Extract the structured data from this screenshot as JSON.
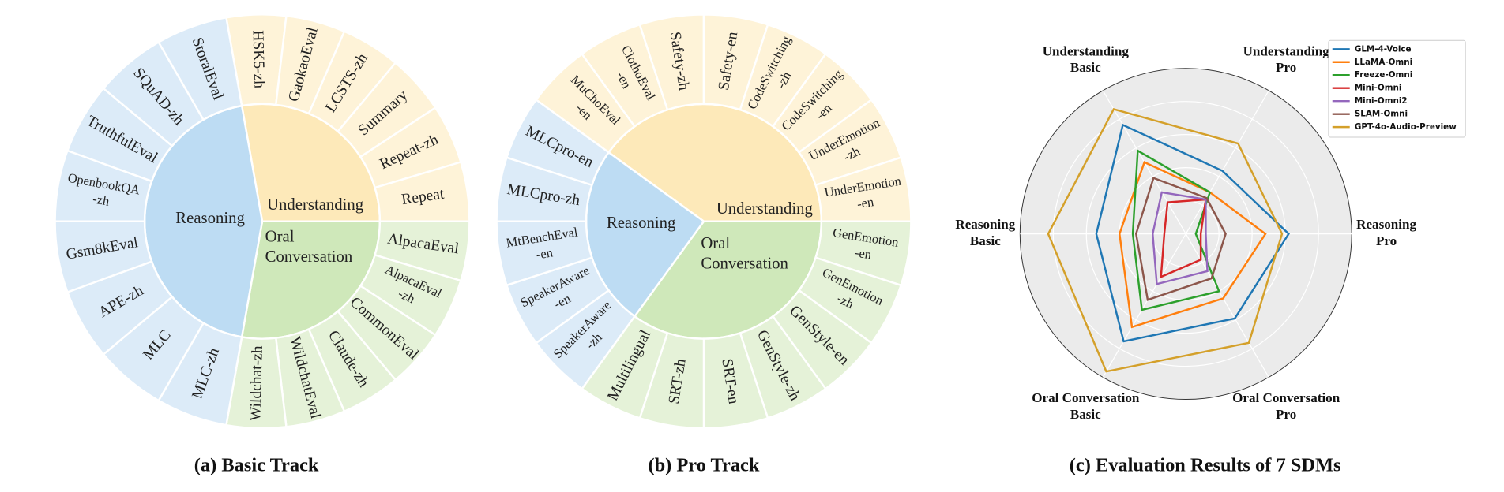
{
  "basic_track": {
    "caption": "(a) Basic Track",
    "groups": [
      {
        "label": [
          "Understanding"
        ],
        "tasks": [
          [
            "HSK5-zh"
          ],
          [
            "GaokaoEval"
          ],
          [
            "LCSTS-zh"
          ],
          [
            "Summary"
          ],
          [
            "Repeat-zh"
          ],
          [
            "Repeat"
          ]
        ]
      },
      {
        "label": [
          "Oral",
          "Conversation"
        ],
        "tasks": [
          [
            "AlpacaEval"
          ],
          [
            "AlpacaEval",
            "-zh"
          ],
          [
            "CommonEval"
          ],
          [
            "Claude-zh"
          ],
          [
            "WildchatEval"
          ],
          [
            "Wildchat-zh"
          ]
        ]
      },
      {
        "label": [
          "Reasoning"
        ],
        "tasks": [
          [
            "MLC-zh"
          ],
          [
            "MLC"
          ],
          [
            "APE-zh"
          ],
          [
            "Gsm8kEval"
          ],
          [
            "OpenbookQA",
            "-zh"
          ],
          [
            "TruthfulEval"
          ],
          [
            "SQuAD-zh"
          ],
          [
            "StoralEval"
          ]
        ]
      }
    ]
  },
  "pro_track": {
    "caption": "(b) Pro Track",
    "groups": [
      {
        "label": [
          "Understanding"
        ],
        "tasks": [
          [
            "MuChoEval",
            "-en"
          ],
          [
            "ClothoEval",
            "-en"
          ],
          [
            "Safety-zh"
          ],
          [
            "Safety-en"
          ],
          [
            "CodeSwitching",
            "-zh"
          ],
          [
            "CodeSwitching",
            "-en"
          ],
          [
            "UnderEmotion",
            "-zh"
          ],
          [
            "UnderEmotion",
            "-en"
          ]
        ]
      },
      {
        "label": [
          "Oral",
          "Conversation"
        ],
        "tasks": [
          [
            "GenEmotion",
            "-en"
          ],
          [
            "GenEmotion",
            "-zh"
          ],
          [
            "GenStyle-en"
          ],
          [
            "GenStyle-zh"
          ],
          [
            "SRT-en"
          ],
          [
            "SRT-zh"
          ],
          [
            "Multilingual"
          ]
        ]
      },
      {
        "label": [
          "Reasoning"
        ],
        "tasks": [
          [
            "SpeakerAware",
            "-zh"
          ],
          [
            "SpeakerAware",
            "-en"
          ],
          [
            "MtBenchEval",
            "-en"
          ],
          [
            "MLCpro-zh"
          ],
          [
            "MLCpro-en"
          ]
        ]
      }
    ]
  },
  "chart_data": {
    "type": "radar",
    "title": "(c) Evaluation Results of 7 SDMs",
    "categories": [
      [
        "Understanding",
        "Basic"
      ],
      [
        "Understanding",
        "Pro"
      ],
      [
        "Reasoning",
        "Pro"
      ],
      [
        "Oral Conversation",
        "Pro"
      ],
      [
        "Oral Conversation",
        "Basic"
      ],
      [
        "Reasoning",
        "Basic"
      ]
    ],
    "rlim": [
      0,
      100
    ],
    "rticks": [
      20,
      40,
      60,
      80
    ],
    "grid": true,
    "legend": "upper right",
    "series": [
      {
        "name": "GLM-4-Voice",
        "color": "#1f77b4",
        "values": [
          76,
          44,
          62,
          59,
          75,
          54
        ]
      },
      {
        "name": "LLaMA-Omni",
        "color": "#ff7f0e",
        "values": [
          50,
          29,
          48,
          45,
          65,
          40
        ]
      },
      {
        "name": "Freeze-Omni",
        "color": "#2ca02c",
        "values": [
          58,
          29,
          6,
          40,
          53,
          32
        ]
      },
      {
        "name": "Mini-Omni",
        "color": "#d62728",
        "values": [
          22,
          24,
          9,
          18,
          30,
          13
        ]
      },
      {
        "name": "Mini-Omni2",
        "color": "#9467bd",
        "values": [
          29,
          24,
          12,
          26,
          35,
          20
        ]
      },
      {
        "name": "SLAM-Omni",
        "color": "#8c564b",
        "values": [
          39,
          25,
          24,
          31,
          46,
          30
        ]
      },
      {
        "name": "GPT-4o-Audio-Preview",
        "color": "#d4a02a",
        "values": [
          87,
          63,
          58,
          76,
          96,
          83
        ]
      }
    ]
  }
}
